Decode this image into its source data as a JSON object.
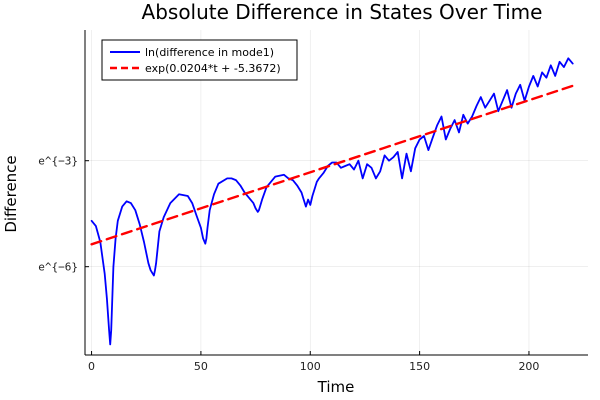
{
  "chart_data": {
    "type": "line",
    "title": "Absolute Difference in States Over Time",
    "xlabel": "Time",
    "ylabel": "Difference",
    "xlim": [
      -3,
      227
    ],
    "ylim": [
      -8.5,
      0.7
    ],
    "x_ticks": [
      0,
      50,
      100,
      150,
      200
    ],
    "x_tick_labels": [
      "0",
      "50",
      "100",
      "150",
      "200"
    ],
    "y_ticks": [
      -3,
      -6
    ],
    "y_tick_labels": [
      "e^{−3}",
      "e^{−6}"
    ],
    "grid": true,
    "legend_position": "top-left",
    "series": [
      {
        "name": "ln(difference in mode1)",
        "color": "#0000ff",
        "style": "solid",
        "x": [
          0,
          2,
          4,
          6,
          7,
          8,
          8.5,
          9,
          9.5,
          10,
          11,
          12,
          14,
          16,
          18,
          20,
          22,
          24,
          26,
          27,
          28,
          28.5,
          29,
          29.5,
          30,
          31,
          33,
          36,
          40,
          44,
          46,
          48,
          50,
          51,
          52,
          52.5,
          53,
          54,
          56,
          58,
          62,
          64,
          66,
          68,
          70,
          72,
          74,
          75,
          76,
          76.5,
          77,
          78,
          80,
          84,
          88,
          90,
          92,
          94,
          96,
          97,
          98,
          99,
          100,
          101,
          102,
          103,
          104,
          106,
          108,
          110,
          112,
          114,
          116,
          118,
          120,
          122,
          124,
          126,
          128,
          130,
          132,
          134,
          136,
          138,
          140,
          142,
          144,
          146,
          148,
          150,
          152,
          154,
          156,
          158,
          160,
          162,
          164,
          166,
          168,
          170,
          172,
          174,
          176,
          178,
          180,
          182,
          184,
          186,
          188,
          190,
          192,
          194,
          196,
          198,
          200,
          202,
          204,
          206,
          208,
          210,
          212,
          214,
          216,
          218,
          220
        ],
        "y": [
          -4.7,
          -4.85,
          -5.3,
          -6.2,
          -6.9,
          -7.8,
          -8.2,
          -7.8,
          -6.9,
          -6.0,
          -5.2,
          -4.7,
          -4.3,
          -4.15,
          -4.2,
          -4.4,
          -4.8,
          -5.3,
          -5.9,
          -6.1,
          -6.2,
          -6.25,
          -6.1,
          -5.9,
          -5.6,
          -5.0,
          -4.6,
          -4.2,
          -3.95,
          -4.0,
          -4.2,
          -4.55,
          -4.9,
          -5.2,
          -5.35,
          -5.2,
          -4.9,
          -4.4,
          -3.95,
          -3.65,
          -3.5,
          -3.5,
          -3.55,
          -3.7,
          -3.9,
          -4.05,
          -4.2,
          -4.35,
          -4.45,
          -4.4,
          -4.3,
          -4.1,
          -3.75,
          -3.45,
          -3.4,
          -3.5,
          -3.55,
          -3.7,
          -3.9,
          -4.1,
          -4.3,
          -4.1,
          -4.25,
          -4.0,
          -3.8,
          -3.6,
          -3.5,
          -3.35,
          -3.15,
          -3.05,
          -3.05,
          -3.2,
          -3.15,
          -3.1,
          -3.25,
          -3.0,
          -3.5,
          -3.1,
          -3.2,
          -3.5,
          -3.3,
          -2.85,
          -3.0,
          -2.9,
          -2.75,
          -3.5,
          -2.8,
          -3.3,
          -2.65,
          -2.4,
          -2.3,
          -2.7,
          -2.35,
          -2.0,
          -1.75,
          -2.4,
          -2.1,
          -1.85,
          -2.2,
          -1.7,
          -1.95,
          -1.75,
          -1.45,
          -1.2,
          -1.5,
          -1.3,
          -1.1,
          -1.6,
          -1.3,
          -1.0,
          -1.5,
          -1.1,
          -0.85,
          -1.3,
          -0.9,
          -0.6,
          -0.9,
          -0.5,
          -0.65,
          -0.3,
          -0.6,
          -0.2,
          -0.35,
          -0.1,
          -0.25
        ],
        "stroke_width": 1.8
      },
      {
        "name": "exp(0.0204*t + -5.3672)",
        "color": "#ff0000",
        "style": "dashed",
        "x": [
          0,
          220
        ],
        "y": [
          -5.3672,
          -0.8792
        ],
        "stroke_width": 2.4
      }
    ]
  }
}
